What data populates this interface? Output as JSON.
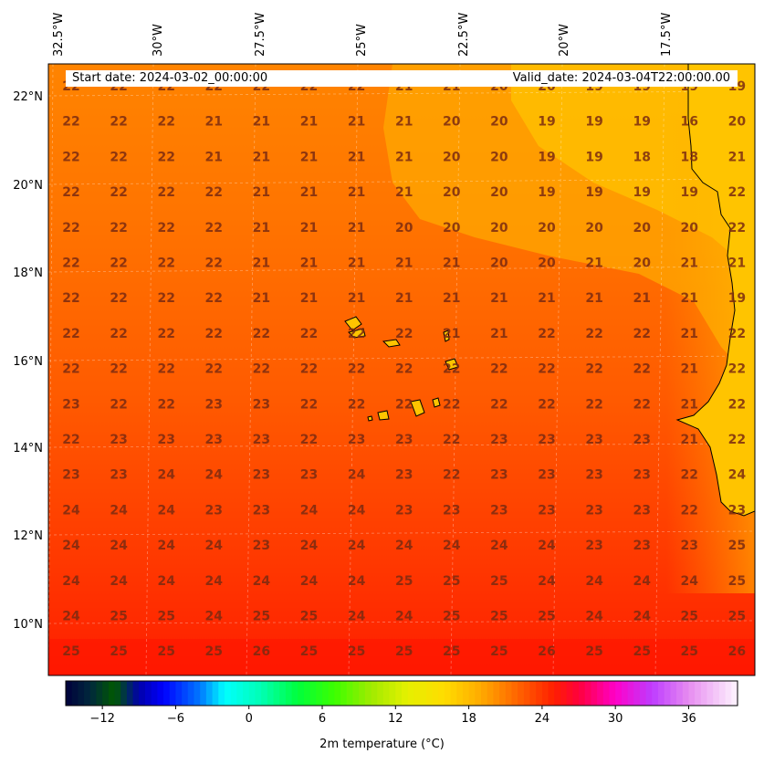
{
  "header": {
    "start_date": "Start date: 2024-03-02_00:00:00",
    "valid_date": "Valid_date: 2024-03-04T22:00:00.00"
  },
  "axes": {
    "lon_labels": [
      "32.5°W",
      "30°W",
      "27.5°W",
      "25°W",
      "22.5°W",
      "20°W",
      "17.5°W"
    ],
    "lat_labels": [
      "22°N",
      "20°N",
      "18°N",
      "16°N",
      "14°N",
      "12°N",
      "10°N"
    ]
  },
  "colorbar": {
    "label": "2m temperature (°C)",
    "ticks": [
      -12,
      -6,
      0,
      6,
      12,
      18,
      24,
      30,
      36
    ],
    "range": [
      -15,
      40
    ]
  },
  "colors": {
    "warm_orange": "#ff7a00",
    "hot_red": "#ff2a00",
    "cool_yellow": "#ffc400",
    "land": "#ffc200",
    "value_text": "#7a2a10"
  },
  "map": {
    "variable": "2m temperature",
    "grid_values": [
      [
        "22",
        "22",
        "22",
        "22",
        "22",
        "22",
        "22",
        "21",
        "21",
        "20",
        "20",
        "19",
        "19",
        "19",
        "19"
      ],
      [
        "22",
        "22",
        "22",
        "21",
        "21",
        "21",
        "21",
        "21",
        "20",
        "20",
        "19",
        "19",
        "19",
        "16",
        "20"
      ],
      [
        "22",
        "22",
        "22",
        "21",
        "21",
        "21",
        "21",
        "21",
        "20",
        "20",
        "19",
        "19",
        "18",
        "18",
        "21"
      ],
      [
        "22",
        "22",
        "22",
        "22",
        "21",
        "21",
        "21",
        "21",
        "20",
        "20",
        "19",
        "19",
        "19",
        "19",
        "22"
      ],
      [
        "22",
        "22",
        "22",
        "22",
        "21",
        "21",
        "21",
        "20",
        "20",
        "20",
        "20",
        "20",
        "20",
        "20",
        "22"
      ],
      [
        "22",
        "22",
        "22",
        "22",
        "21",
        "21",
        "21",
        "21",
        "21",
        "20",
        "20",
        "21",
        "20",
        "21",
        "21"
      ],
      [
        "22",
        "22",
        "22",
        "22",
        "21",
        "21",
        "21",
        "21",
        "21",
        "21",
        "21",
        "21",
        "21",
        "21",
        "19"
      ],
      [
        "22",
        "22",
        "22",
        "22",
        "22",
        "22",
        "22",
        "22",
        "21",
        "21",
        "22",
        "22",
        "22",
        "21",
        "22"
      ],
      [
        "22",
        "22",
        "22",
        "22",
        "22",
        "22",
        "22",
        "22",
        "22",
        "22",
        "22",
        "22",
        "22",
        "21",
        "22"
      ],
      [
        "23",
        "22",
        "22",
        "23",
        "23",
        "22",
        "22",
        "22",
        "22",
        "22",
        "22",
        "22",
        "22",
        "21",
        "22"
      ],
      [
        "22",
        "23",
        "23",
        "23",
        "23",
        "22",
        "23",
        "23",
        "22",
        "23",
        "23",
        "23",
        "23",
        "21",
        "22"
      ],
      [
        "23",
        "23",
        "24",
        "24",
        "23",
        "23",
        "24",
        "23",
        "22",
        "23",
        "23",
        "23",
        "23",
        "22",
        "24"
      ],
      [
        "24",
        "24",
        "24",
        "23",
        "23",
        "24",
        "24",
        "23",
        "23",
        "23",
        "23",
        "23",
        "23",
        "22",
        "23"
      ],
      [
        "24",
        "24",
        "24",
        "24",
        "23",
        "24",
        "24",
        "24",
        "24",
        "24",
        "24",
        "23",
        "23",
        "23",
        "25"
      ],
      [
        "24",
        "24",
        "24",
        "24",
        "24",
        "24",
        "24",
        "25",
        "25",
        "25",
        "24",
        "24",
        "24",
        "24",
        "25"
      ],
      [
        "24",
        "25",
        "25",
        "24",
        "25",
        "25",
        "24",
        "24",
        "25",
        "25",
        "25",
        "24",
        "24",
        "25",
        "25"
      ],
      [
        "25",
        "25",
        "25",
        "25",
        "26",
        "25",
        "25",
        "25",
        "25",
        "25",
        "26",
        "25",
        "25",
        "25",
        "26"
      ]
    ]
  }
}
